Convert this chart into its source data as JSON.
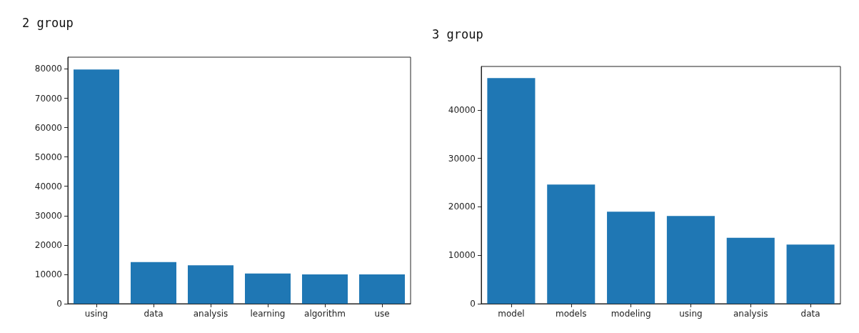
{
  "chart_data": [
    {
      "type": "bar",
      "title": "2 group",
      "categories": [
        "using",
        "data",
        "analysis",
        "learning",
        "algorithm",
        "use"
      ],
      "values": [
        79800,
        14200,
        13100,
        10300,
        10000,
        10000
      ],
      "color": "#1f77b4",
      "ylim": [
        0,
        84000
      ],
      "yticks": [
        0,
        10000,
        20000,
        30000,
        40000,
        50000,
        60000,
        70000,
        80000
      ],
      "grid": false
    },
    {
      "type": "bar",
      "title": "3 group",
      "categories": [
        "model",
        "models",
        "modeling",
        "using",
        "analysis",
        "data"
      ],
      "values": [
        46600,
        24600,
        19000,
        18100,
        13600,
        12200
      ],
      "color": "#1f77b4",
      "ylim": [
        0,
        49000
      ],
      "yticks": [
        0,
        10000,
        20000,
        30000,
        40000
      ],
      "grid": false
    }
  ]
}
